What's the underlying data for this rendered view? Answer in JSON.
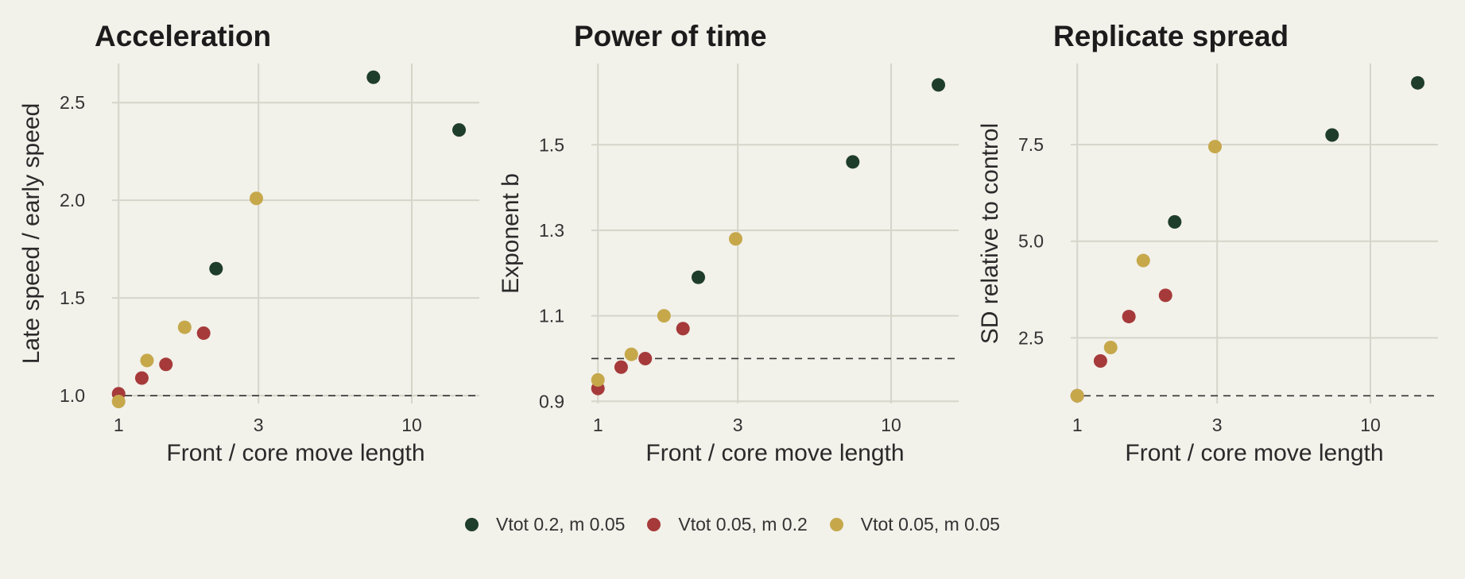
{
  "legend": [
    {
      "label": "Vtot 0.2, m 0.05",
      "color": "#1f3d2b"
    },
    {
      "label": "Vtot 0.05, m 0.2",
      "color": "#a63a3a"
    },
    {
      "label": "Vtot 0.05, m 0.05",
      "color": "#c6a84b"
    }
  ],
  "chart_data": [
    {
      "type": "scatter",
      "title": "Acceleration",
      "xlabel": "Front / core move length",
      "ylabel": "Late speed / early speed",
      "x_scale": "log",
      "xlim": [
        0.95,
        17
      ],
      "ylim": [
        0.96,
        2.7
      ],
      "xticks": [
        1,
        3,
        10
      ],
      "yticks": [
        1.0,
        1.5,
        2.0,
        2.5
      ],
      "ytick_labels": [
        "1.0",
        "1.5",
        "2.0",
        "2.5"
      ],
      "reference_y": 1.0,
      "grid": true,
      "series": [
        {
          "name": "Vtot 0.2, m 0.05",
          "color": "#1f3d2b",
          "points": [
            [
              2.15,
              1.65
            ],
            [
              7.4,
              2.63
            ],
            [
              14.5,
              2.36
            ]
          ]
        },
        {
          "name": "Vtot 0.05, m 0.2",
          "color": "#a63a3a",
          "points": [
            [
              1.0,
              1.01
            ],
            [
              1.2,
              1.09
            ],
            [
              1.45,
              1.16
            ],
            [
              1.95,
              1.32
            ]
          ]
        },
        {
          "name": "Vtot 0.05, m 0.05",
          "color": "#c6a84b",
          "points": [
            [
              1.0,
              0.97
            ],
            [
              1.25,
              1.18
            ],
            [
              1.68,
              1.35
            ],
            [
              2.95,
              2.01
            ]
          ]
        }
      ]
    },
    {
      "type": "scatter",
      "title": "Power of time",
      "xlabel": "Front / core move length",
      "ylabel": "Exponent b",
      "x_scale": "log",
      "xlim": [
        0.95,
        17
      ],
      "ylim": [
        0.895,
        1.69
      ],
      "xticks": [
        1,
        3,
        10
      ],
      "yticks": [
        0.9,
        1.1,
        1.3,
        1.5
      ],
      "ytick_labels": [
        "0.9",
        "1.1",
        "1.3",
        "1.5"
      ],
      "reference_y": 1.0,
      "grid": true,
      "series": [
        {
          "name": "Vtot 0.2, m 0.05",
          "color": "#1f3d2b",
          "points": [
            [
              2.2,
              1.19
            ],
            [
              7.4,
              1.46
            ],
            [
              14.5,
              1.64
            ]
          ]
        },
        {
          "name": "Vtot 0.05, m 0.2",
          "color": "#a63a3a",
          "points": [
            [
              1.0,
              0.93
            ],
            [
              1.2,
              0.98
            ],
            [
              1.45,
              1.0
            ],
            [
              1.95,
              1.07
            ]
          ]
        },
        {
          "name": "Vtot 0.05, m 0.05",
          "color": "#c6a84b",
          "points": [
            [
              1.0,
              0.95
            ],
            [
              1.3,
              1.01
            ],
            [
              1.68,
              1.1
            ],
            [
              2.95,
              1.28
            ]
          ]
        }
      ]
    },
    {
      "type": "scatter",
      "title": "Replicate spread",
      "xlabel": "Front / core move length",
      "ylabel": "SD relative to control",
      "x_scale": "log",
      "xlim": [
        0.95,
        17
      ],
      "ylim": [
        0.8,
        9.6
      ],
      "xticks": [
        1,
        3,
        10
      ],
      "yticks": [
        2.5,
        5.0,
        7.5
      ],
      "ytick_labels": [
        "2.5",
        "5.0",
        "7.5"
      ],
      "reference_y": 1.0,
      "grid": true,
      "series": [
        {
          "name": "Vtot 0.2, m 0.05",
          "color": "#1f3d2b",
          "points": [
            [
              2.15,
              5.5
            ],
            [
              7.4,
              7.75
            ],
            [
              14.5,
              9.1
            ]
          ]
        },
        {
          "name": "Vtot 0.05, m 0.2",
          "color": "#a63a3a",
          "points": [
            [
              1.0,
              1.0
            ],
            [
              1.2,
              1.9
            ],
            [
              1.5,
              3.05
            ],
            [
              2.0,
              3.6
            ]
          ]
        },
        {
          "name": "Vtot 0.05, m 0.05",
          "color": "#c6a84b",
          "points": [
            [
              1.0,
              1.0
            ],
            [
              1.3,
              2.25
            ],
            [
              1.68,
              4.5
            ],
            [
              2.95,
              7.45
            ]
          ]
        }
      ]
    }
  ]
}
